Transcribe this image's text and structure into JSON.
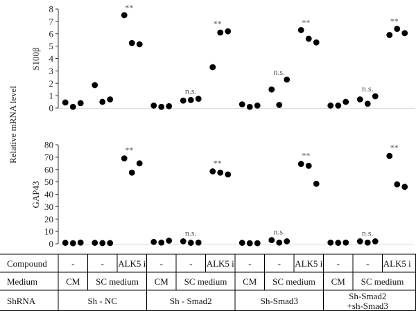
{
  "chart_data": [
    {
      "type": "scatter",
      "ylabel": "S100β",
      "ylim": [
        0,
        8
      ],
      "yticks": [
        0,
        1,
        2,
        3,
        4,
        5,
        6,
        7,
        8
      ],
      "groups": [
        {
          "values": [
            0.45,
            0.1,
            0.4
          ],
          "annotation": ""
        },
        {
          "values": [
            1.85,
            0.5,
            0.7
          ],
          "annotation": ""
        },
        {
          "values": [
            7.5,
            5.25,
            5.15
          ],
          "annotation": "**"
        },
        {
          "values": [
            0.2,
            0.1,
            0.15
          ],
          "annotation": ""
        },
        {
          "values": [
            0.6,
            0.65,
            0.75
          ],
          "annotation": "n.s."
        },
        {
          "values": [
            3.3,
            6.1,
            6.2
          ],
          "annotation": "**"
        },
        {
          "values": [
            0.3,
            0.1,
            0.2
          ],
          "annotation": ""
        },
        {
          "values": [
            1.5,
            0.25,
            2.3
          ],
          "annotation": "n.s."
        },
        {
          "values": [
            6.3,
            5.6,
            5.3
          ],
          "annotation": "**"
        },
        {
          "values": [
            0.2,
            0.2,
            0.5
          ],
          "annotation": ""
        },
        {
          "values": [
            0.7,
            0.35,
            0.95
          ],
          "annotation": "n.s."
        },
        {
          "values": [
            5.9,
            6.4,
            6.05
          ],
          "annotation": "**"
        }
      ]
    },
    {
      "type": "scatter",
      "ylabel": "GAP43",
      "ylim": [
        0,
        80
      ],
      "yticks": [
        0,
        10,
        20,
        30,
        40,
        50,
        60,
        70,
        80
      ],
      "groups": [
        {
          "values": [
            0.8,
            0.5,
            1.0
          ],
          "annotation": ""
        },
        {
          "values": [
            0.8,
            0.6,
            0.6
          ],
          "annotation": ""
        },
        {
          "values": [
            69,
            57.5,
            65
          ],
          "annotation": "**"
        },
        {
          "values": [
            1.5,
            1.0,
            2.5
          ],
          "annotation": ""
        },
        {
          "values": [
            2.0,
            0.8,
            1.0
          ],
          "annotation": "n.s."
        },
        {
          "values": [
            58.5,
            57.5,
            56
          ],
          "annotation": "**"
        },
        {
          "values": [
            0.8,
            0.5,
            0.5
          ],
          "annotation": ""
        },
        {
          "values": [
            3.0,
            1.0,
            2.0
          ],
          "annotation": "n.s."
        },
        {
          "values": [
            64.5,
            63,
            48.5
          ],
          "annotation": "**"
        },
        {
          "values": [
            1.0,
            0.8,
            1.0
          ],
          "annotation": ""
        },
        {
          "values": [
            2.0,
            1.0,
            2.0
          ],
          "annotation": "n.s."
        },
        {
          "values": [
            71,
            48,
            46
          ],
          "annotation": "**"
        }
      ]
    }
  ],
  "shared_ylabel": "Relative mRNA level",
  "table": {
    "rows": [
      {
        "header": "Compound",
        "cells": [
          {
            "text": "-",
            "span": 1
          },
          {
            "text": "-",
            "span": 1
          },
          {
            "text": "ALK5 i",
            "span": 1
          },
          {
            "text": "-",
            "span": 1
          },
          {
            "text": "-",
            "span": 1
          },
          {
            "text": "ALK5 i",
            "span": 1
          },
          {
            "text": "-",
            "span": 1
          },
          {
            "text": "-",
            "span": 1
          },
          {
            "text": "ALK5 i",
            "span": 1
          },
          {
            "text": "-",
            "span": 1
          },
          {
            "text": "-",
            "span": 1
          },
          {
            "text": "ALK5 i",
            "span": 1
          }
        ]
      },
      {
        "header": "Medium",
        "cells": [
          {
            "text": "CM",
            "span": 1
          },
          {
            "text": "SC medium",
            "span": 2
          },
          {
            "text": "CM",
            "span": 1
          },
          {
            "text": "SC medium",
            "span": 2
          },
          {
            "text": "CM",
            "span": 1
          },
          {
            "text": "SC medium",
            "span": 2
          },
          {
            "text": "CM",
            "span": 1
          },
          {
            "text": "SC medium",
            "span": 2
          }
        ]
      },
      {
        "header": "ShRNA",
        "cells": [
          {
            "text": "Sh - NC",
            "span": 3
          },
          {
            "text": "Sh - Smad2",
            "span": 3
          },
          {
            "text": "Sh-Smad3",
            "span": 3
          },
          {
            "text": "Sh-Smad2\n+sh-Smad3",
            "span": 3
          }
        ]
      }
    ]
  }
}
